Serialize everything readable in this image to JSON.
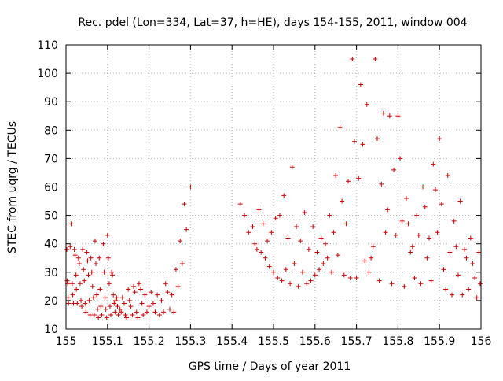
{
  "chart_data": {
    "type": "scatter",
    "title": "Rec. pdel (Lon=334, Lat=37, h=HE), days 154-155, 2011, window 004",
    "xlabel": "GPS time / Days of year 2011",
    "ylabel": "STEC from uqrg / TECUs",
    "xlim": [
      155,
      156
    ],
    "ylim": [
      10,
      110
    ],
    "xticks": [
      "155",
      "155.1",
      "155.2",
      "155.3",
      "155.4",
      "155.5",
      "155.6",
      "155.7",
      "155.8",
      "155.9",
      "156"
    ],
    "yticks": [
      "10",
      "20",
      "30",
      "40",
      "50",
      "60",
      "70",
      "80",
      "90",
      "100",
      "110"
    ],
    "grid": true,
    "marker": "+",
    "color": "#cc0000",
    "points": [
      [
        155.002,
        38
      ],
      [
        155.003,
        27
      ],
      [
        155.004,
        26
      ],
      [
        155.005,
        21
      ],
      [
        155.006,
        19
      ],
      [
        155.01,
        39
      ],
      [
        155.012,
        47
      ],
      [
        155.015,
        26
      ],
      [
        155.016,
        22
      ],
      [
        155.018,
        19
      ],
      [
        155.02,
        38
      ],
      [
        155.022,
        36
      ],
      [
        155.024,
        29
      ],
      [
        155.025,
        24
      ],
      [
        155.027,
        19
      ],
      [
        155.03,
        35
      ],
      [
        155.032,
        33
      ],
      [
        155.034,
        26
      ],
      [
        155.036,
        20
      ],
      [
        155.038,
        18
      ],
      [
        155.04,
        38
      ],
      [
        155.042,
        31
      ],
      [
        155.044,
        27
      ],
      [
        155.046,
        19
      ],
      [
        155.048,
        16
      ],
      [
        155.05,
        37
      ],
      [
        155.052,
        34
      ],
      [
        155.054,
        29
      ],
      [
        155.056,
        20
      ],
      [
        155.058,
        15
      ],
      [
        155.06,
        35
      ],
      [
        155.062,
        30
      ],
      [
        155.064,
        25
      ],
      [
        155.066,
        21
      ],
      [
        155.068,
        15
      ],
      [
        155.07,
        41
      ],
      [
        155.072,
        33
      ],
      [
        155.074,
        22
      ],
      [
        155.076,
        17
      ],
      [
        155.078,
        14
      ],
      [
        155.08,
        35
      ],
      [
        155.082,
        24
      ],
      [
        155.084,
        18
      ],
      [
        155.086,
        15
      ],
      [
        155.09,
        40
      ],
      [
        155.092,
        30
      ],
      [
        155.094,
        21
      ],
      [
        155.096,
        17
      ],
      [
        155.098,
        14
      ],
      [
        155.1,
        43
      ],
      [
        155.102,
        35
      ],
      [
        155.104,
        26
      ],
      [
        155.106,
        18
      ],
      [
        155.108,
        15
      ],
      [
        155.11,
        30
      ],
      [
        155.112,
        29
      ],
      [
        155.114,
        22
      ],
      [
        155.116,
        19
      ],
      [
        155.118,
        16
      ],
      [
        155.12,
        20
      ],
      [
        155.122,
        21
      ],
      [
        155.124,
        18
      ],
      [
        155.126,
        15
      ],
      [
        155.13,
        17
      ],
      [
        155.133,
        16
      ],
      [
        155.136,
        21
      ],
      [
        155.14,
        19
      ],
      [
        155.143,
        15
      ],
      [
        155.146,
        14
      ],
      [
        155.15,
        24
      ],
      [
        155.153,
        20
      ],
      [
        155.156,
        18
      ],
      [
        155.16,
        15
      ],
      [
        155.163,
        25
      ],
      [
        155.166,
        23
      ],
      [
        155.17,
        16
      ],
      [
        155.173,
        14
      ],
      [
        155.176,
        26
      ],
      [
        155.18,
        24
      ],
      [
        155.183,
        19
      ],
      [
        155.186,
        15
      ],
      [
        155.19,
        22
      ],
      [
        155.195,
        16
      ],
      [
        155.2,
        18
      ],
      [
        155.205,
        23
      ],
      [
        155.21,
        19
      ],
      [
        155.215,
        16
      ],
      [
        155.22,
        22
      ],
      [
        155.225,
        15
      ],
      [
        155.23,
        20
      ],
      [
        155.235,
        16
      ],
      [
        155.24,
        26
      ],
      [
        155.245,
        23
      ],
      [
        155.25,
        17
      ],
      [
        155.255,
        22
      ],
      [
        155.26,
        16
      ],
      [
        155.265,
        31
      ],
      [
        155.27,
        25
      ],
      [
        155.275,
        41
      ],
      [
        155.28,
        33
      ],
      [
        155.285,
        54
      ],
      [
        155.29,
        45
      ],
      [
        155.3,
        60
      ],
      [
        155.42,
        54
      ],
      [
        155.43,
        50
      ],
      [
        155.44,
        44
      ],
      [
        155.45,
        46
      ],
      [
        155.455,
        40
      ],
      [
        155.46,
        38
      ],
      [
        155.465,
        52
      ],
      [
        155.47,
        37
      ],
      [
        155.475,
        47
      ],
      [
        155.48,
        35
      ],
      [
        155.485,
        41
      ],
      [
        155.49,
        32
      ],
      [
        155.495,
        44
      ],
      [
        155.5,
        30
      ],
      [
        155.505,
        49
      ],
      [
        155.51,
        28
      ],
      [
        155.515,
        50
      ],
      [
        155.52,
        27
      ],
      [
        155.525,
        57
      ],
      [
        155.53,
        31
      ],
      [
        155.535,
        42
      ],
      [
        155.54,
        26
      ],
      [
        155.545,
        67
      ],
      [
        155.55,
        33
      ],
      [
        155.555,
        46
      ],
      [
        155.56,
        25
      ],
      [
        155.565,
        41
      ],
      [
        155.57,
        30
      ],
      [
        155.575,
        51
      ],
      [
        155.58,
        26
      ],
      [
        155.585,
        38
      ],
      [
        155.59,
        27
      ],
      [
        155.595,
        46
      ],
      [
        155.6,
        29
      ],
      [
        155.605,
        37
      ],
      [
        155.61,
        31
      ],
      [
        155.615,
        42
      ],
      [
        155.62,
        33
      ],
      [
        155.625,
        40
      ],
      [
        155.63,
        35
      ],
      [
        155.635,
        50
      ],
      [
        155.64,
        30
      ],
      [
        155.645,
        44
      ],
      [
        155.65,
        64
      ],
      [
        155.655,
        36
      ],
      [
        155.66,
        81
      ],
      [
        155.665,
        55
      ],
      [
        155.67,
        29
      ],
      [
        155.675,
        47
      ],
      [
        155.68,
        62
      ],
      [
        155.685,
        28
      ],
      [
        155.69,
        105
      ],
      [
        155.695,
        76
      ],
      [
        155.7,
        28
      ],
      [
        155.705,
        63
      ],
      [
        155.71,
        96
      ],
      [
        155.715,
        75
      ],
      [
        155.72,
        34
      ],
      [
        155.725,
        89
      ],
      [
        155.73,
        30
      ],
      [
        155.735,
        35
      ],
      [
        155.74,
        39
      ],
      [
        155.745,
        105
      ],
      [
        155.75,
        77
      ],
      [
        155.755,
        27
      ],
      [
        155.76,
        61
      ],
      [
        155.765,
        86
      ],
      [
        155.77,
        44
      ],
      [
        155.775,
        52
      ],
      [
        155.78,
        85
      ],
      [
        155.785,
        26
      ],
      [
        155.79,
        66
      ],
      [
        155.795,
        43
      ],
      [
        155.8,
        85
      ],
      [
        155.805,
        70
      ],
      [
        155.81,
        48
      ],
      [
        155.815,
        25
      ],
      [
        155.82,
        56
      ],
      [
        155.825,
        47
      ],
      [
        155.83,
        37
      ],
      [
        155.835,
        39
      ],
      [
        155.84,
        28
      ],
      [
        155.845,
        50
      ],
      [
        155.85,
        43
      ],
      [
        155.855,
        26
      ],
      [
        155.86,
        60
      ],
      [
        155.865,
        53
      ],
      [
        155.87,
        35
      ],
      [
        155.875,
        42
      ],
      [
        155.88,
        27
      ],
      [
        155.885,
        68
      ],
      [
        155.89,
        59
      ],
      [
        155.895,
        44
      ],
      [
        155.9,
        77
      ],
      [
        155.905,
        54
      ],
      [
        155.91,
        31
      ],
      [
        155.915,
        24
      ],
      [
        155.92,
        64
      ],
      [
        155.925,
        37
      ],
      [
        155.93,
        22
      ],
      [
        155.935,
        48
      ],
      [
        155.94,
        39
      ],
      [
        155.945,
        29
      ],
      [
        155.95,
        55
      ],
      [
        155.955,
        22
      ],
      [
        155.96,
        38
      ],
      [
        155.965,
        35
      ],
      [
        155.97,
        24
      ],
      [
        155.975,
        42
      ],
      [
        155.98,
        33
      ],
      [
        155.985,
        28
      ],
      [
        155.99,
        21
      ],
      [
        155.995,
        37
      ],
      [
        155.998,
        26
      ]
    ]
  }
}
